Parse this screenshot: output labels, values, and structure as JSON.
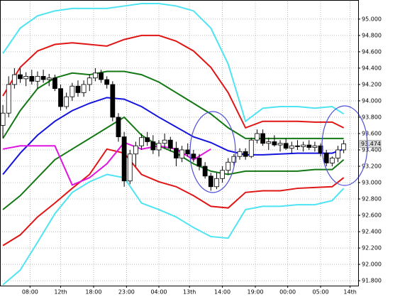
{
  "chart_data": {
    "type": "candlestick",
    "grid": true,
    "xlim": [
      -0.5,
      61.5
    ],
    "ylim": [
      91.74,
      95.216
    ],
    "xticks": [
      {
        "value": 4.7,
        "label": "08:00"
      },
      {
        "value": 10,
        "label": "12th"
      },
      {
        "value": 15.7,
        "label": "18:00"
      },
      {
        "value": 21.4,
        "label": "23:00"
      },
      {
        "value": 27,
        "label": "04:00"
      },
      {
        "value": 32.3,
        "label": "13th"
      },
      {
        "value": 38,
        "label": "14:00"
      },
      {
        "value": 43.7,
        "label": "19:00"
      },
      {
        "value": 49.3,
        "label": "00:00"
      },
      {
        "value": 55,
        "label": "05:00"
      },
      {
        "value": 60.1,
        "label": "14th"
      }
    ],
    "yticks": [
      {
        "value": 95.0,
        "label": "95.000"
      },
      {
        "value": 94.8,
        "label": "94.800"
      },
      {
        "value": 94.6,
        "label": "94.600"
      },
      {
        "value": 94.4,
        "label": "94.400"
      },
      {
        "value": 94.2,
        "label": "94.200"
      },
      {
        "value": 94.0,
        "label": "94.000"
      },
      {
        "value": 93.8,
        "label": "93.800"
      },
      {
        "value": 93.6,
        "label": "93.600"
      },
      {
        "value": 93.4,
        "label": "93.400"
      },
      {
        "value": 93.2,
        "label": "93.200"
      },
      {
        "value": 93.0,
        "label": "93.000"
      },
      {
        "value": 92.8,
        "label": "92.800"
      },
      {
        "value": 92.6,
        "label": "92.600"
      },
      {
        "value": 92.4,
        "label": "92.400"
      },
      {
        "value": 92.2,
        "label": "92.200"
      },
      {
        "value": 92.0,
        "label": "92.000"
      },
      {
        "value": 91.8,
        "label": "91.800"
      }
    ],
    "candles": {
      "x": [
        0,
        1,
        2,
        3,
        4,
        5,
        6,
        7,
        8,
        9,
        10,
        11,
        12,
        13,
        14,
        15,
        16,
        17,
        18,
        19,
        20,
        21,
        22,
        23,
        24,
        25,
        26,
        27,
        28,
        29,
        30,
        31,
        32,
        33,
        34,
        35,
        36,
        37,
        38,
        39,
        40,
        41,
        42,
        43,
        44,
        45,
        46,
        47,
        48,
        49,
        50,
        51,
        52,
        53,
        54,
        55,
        56,
        57,
        58,
        59
      ],
      "open": [
        93.7,
        93.85,
        94.2,
        94.32,
        94.27,
        94.3,
        94.24,
        94.3,
        94.26,
        94.28,
        94.15,
        93.93,
        94.05,
        94.18,
        94.1,
        94.2,
        94.28,
        94.34,
        94.26,
        94.2,
        93.8,
        93.56,
        93.02,
        93.35,
        93.45,
        93.55,
        93.5,
        93.4,
        93.48,
        93.52,
        93.42,
        93.3,
        93.4,
        93.35,
        93.3,
        93.2,
        93.08,
        92.95,
        93.05,
        93.15,
        93.25,
        93.32,
        93.38,
        93.32,
        93.52,
        93.6,
        93.48,
        93.5,
        93.46,
        93.48,
        93.42,
        93.45,
        93.44,
        93.46,
        93.43,
        93.45,
        93.36,
        93.24,
        93.3,
        93.4
      ],
      "high": [
        93.95,
        94.3,
        94.4,
        94.4,
        94.35,
        94.38,
        94.36,
        94.38,
        94.33,
        94.32,
        94.2,
        94.1,
        94.22,
        94.25,
        94.25,
        94.32,
        94.4,
        94.38,
        94.3,
        94.24,
        93.85,
        93.62,
        93.4,
        93.5,
        93.6,
        93.62,
        93.58,
        93.52,
        93.6,
        93.56,
        93.5,
        93.45,
        93.48,
        93.4,
        93.35,
        93.25,
        93.12,
        93.12,
        93.2,
        93.3,
        93.35,
        93.42,
        93.42,
        93.55,
        93.65,
        93.65,
        93.55,
        93.58,
        93.52,
        93.54,
        93.5,
        93.52,
        93.5,
        93.52,
        93.5,
        93.48,
        93.4,
        93.32,
        93.45,
        93.52
      ],
      "low": [
        93.55,
        93.8,
        94.15,
        94.22,
        94.18,
        94.2,
        94.15,
        94.22,
        94.18,
        94.12,
        93.88,
        93.9,
        94.0,
        94.05,
        94.05,
        94.12,
        94.24,
        94.22,
        94.15,
        93.75,
        93.5,
        92.95,
        92.98,
        93.2,
        93.4,
        93.45,
        93.35,
        93.32,
        93.42,
        93.38,
        93.2,
        93.25,
        93.32,
        93.25,
        93.15,
        93.05,
        92.9,
        92.92,
        93.0,
        93.1,
        93.2,
        93.28,
        93.28,
        93.3,
        93.48,
        93.45,
        93.4,
        93.44,
        93.38,
        93.4,
        93.36,
        93.4,
        93.38,
        93.4,
        93.38,
        93.32,
        93.2,
        93.2,
        93.25,
        93.36
      ],
      "close": [
        93.85,
        94.2,
        94.32,
        94.27,
        94.3,
        94.24,
        94.3,
        94.26,
        94.28,
        94.15,
        93.93,
        94.05,
        94.18,
        94.1,
        94.2,
        94.28,
        94.34,
        94.26,
        94.2,
        93.8,
        93.56,
        93.02,
        93.35,
        93.45,
        93.55,
        93.5,
        93.4,
        93.48,
        93.52,
        93.42,
        93.3,
        93.4,
        93.35,
        93.3,
        93.2,
        93.08,
        92.95,
        93.05,
        93.15,
        93.25,
        93.32,
        93.38,
        93.32,
        93.52,
        93.6,
        93.48,
        93.5,
        93.46,
        93.48,
        93.42,
        93.45,
        93.44,
        93.46,
        93.43,
        93.45,
        93.36,
        93.24,
        93.3,
        93.4,
        93.474
      ]
    },
    "lines": {
      "x": [
        0,
        3,
        6,
        9,
        12,
        15,
        18,
        21,
        24,
        27,
        30,
        33,
        36,
        39,
        42,
        45,
        48,
        51,
        54,
        57,
        59
      ],
      "series": [
        {
          "color": "#4ee4f2",
          "values": [
            94.58,
            94.89,
            95.04,
            95.1,
            95.13,
            95.13,
            95.13,
            95.16,
            95.19,
            95.19,
            95.16,
            95.1,
            94.89,
            94.45,
            93.75,
            93.91,
            93.93,
            93.93,
            93.91,
            93.93,
            93.84
          ]
        },
        {
          "color": "#e01616",
          "values": [
            94.06,
            94.41,
            94.61,
            94.69,
            94.71,
            94.69,
            94.67,
            94.75,
            94.8,
            94.8,
            94.73,
            94.61,
            94.41,
            94.1,
            93.67,
            93.75,
            93.75,
            93.75,
            93.74,
            93.74,
            93.67
          ]
        },
        {
          "color": "#147814",
          "values": [
            93.54,
            93.88,
            94.15,
            94.28,
            94.34,
            94.32,
            94.36,
            94.36,
            94.32,
            94.23,
            94.1,
            93.97,
            93.84,
            93.67,
            93.54,
            93.54,
            93.54,
            93.54,
            93.54,
            93.54,
            93.54
          ]
        },
        {
          "color": "#1414dc",
          "values": [
            93.1,
            93.36,
            93.58,
            93.75,
            93.88,
            93.97,
            94.04,
            94.02,
            93.93,
            93.8,
            93.68,
            93.56,
            93.49,
            93.39,
            93.34,
            93.34,
            93.35,
            93.36,
            93.36,
            93.36,
            93.41
          ]
        },
        {
          "color": "#147814",
          "values": [
            92.67,
            92.84,
            93.06,
            93.28,
            93.41,
            93.54,
            93.67,
            93.8,
            93.58,
            93.45,
            93.36,
            93.23,
            93.14,
            93.1,
            93.14,
            93.14,
            93.14,
            93.14,
            93.16,
            93.16,
            93.28
          ]
        },
        {
          "color": "#e01616",
          "values": [
            92.23,
            92.36,
            92.58,
            92.75,
            92.93,
            93.1,
            93.41,
            93.36,
            93.1,
            93.01,
            92.95,
            92.84,
            92.71,
            92.69,
            92.88,
            92.9,
            92.9,
            92.93,
            92.94,
            92.95,
            93.06
          ]
        },
        {
          "color": "#4ee4f2",
          "values": [
            91.75,
            91.93,
            92.27,
            92.62,
            92.88,
            93.01,
            93.1,
            93.06,
            92.75,
            92.67,
            92.58,
            92.45,
            92.34,
            92.32,
            92.67,
            92.71,
            92.71,
            92.73,
            92.73,
            92.78,
            92.93
          ]
        },
        {
          "color": "#e014e0",
          "values": [
            93.41,
            93.45,
            93.45,
            93.45,
            92.97,
            93.06,
            93.23,
            93.49,
            93.41,
            93.45,
            93.41,
            93.28,
            93.41,
            null,
            null,
            null,
            null,
            null,
            null,
            null,
            null
          ]
        }
      ]
    }
  }
}
